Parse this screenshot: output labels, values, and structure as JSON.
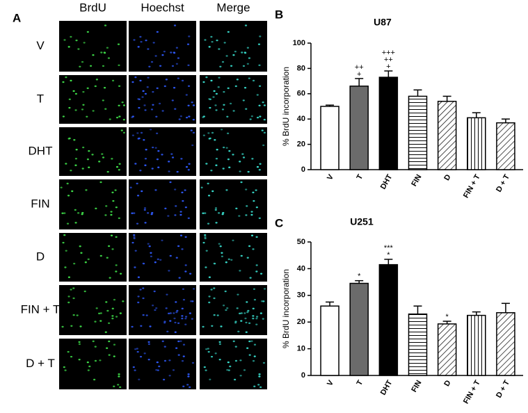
{
  "panel_a": {
    "label": "A",
    "columns": [
      "BrdU",
      "Hoechst",
      "Merge"
    ],
    "rows": [
      "V",
      "T",
      "DHT",
      "FIN",
      "D",
      "FIN + T",
      "D + T"
    ]
  },
  "chart_data": [
    {
      "type": "bar",
      "panel_label": "B",
      "title": "U87",
      "y_label": "% BrdU incorporation",
      "categories": [
        "V",
        "T",
        "DHT",
        "FIN",
        "D",
        "FIN + T",
        "D + T"
      ],
      "values": [
        50,
        66,
        73,
        58,
        54,
        41,
        37
      ],
      "errors": [
        1,
        6,
        5,
        5,
        4,
        4,
        3
      ],
      "annotations": [
        null,
        [
          "++",
          "+"
        ],
        [
          "+++",
          "++",
          "+"
        ],
        null,
        null,
        null,
        null
      ],
      "fills": [
        "white",
        "#6b6b6b",
        "black",
        "hlines",
        "diag",
        "vlines",
        "diag"
      ],
      "ylim": [
        0,
        100
      ],
      "yticks": [
        0,
        20,
        40,
        60,
        80,
        100
      ]
    },
    {
      "type": "bar",
      "panel_label": "C",
      "title": "U251",
      "y_label": "% BrdU incorporation",
      "categories": [
        "V",
        "T",
        "DHT",
        "FIN",
        "D",
        "FIN + T",
        "D + T"
      ],
      "values": [
        26,
        34.5,
        41.5,
        23,
        19.3,
        22.5,
        23.5
      ],
      "errors": [
        1.5,
        1,
        2,
        3,
        1,
        1.3,
        3.5
      ],
      "annotations": [
        null,
        [
          "*"
        ],
        [
          "***",
          "*"
        ],
        null,
        [
          "*"
        ],
        null,
        null
      ],
      "fills": [
        "white",
        "#6b6b6b",
        "black",
        "hlines",
        "diag",
        "vlines",
        "diag"
      ],
      "ylim": [
        0,
        50
      ],
      "yticks": [
        0,
        10,
        20,
        30,
        40,
        50
      ]
    }
  ]
}
